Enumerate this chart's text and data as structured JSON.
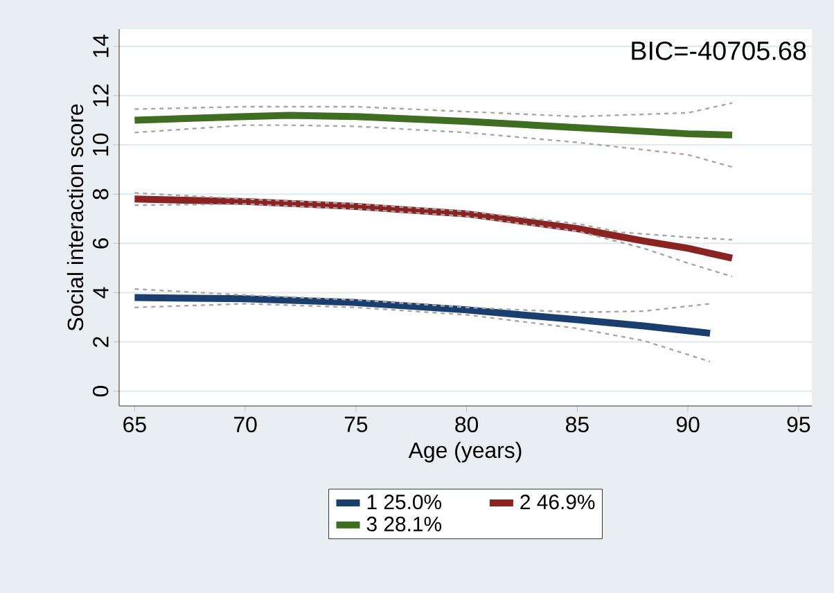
{
  "chart_data": {
    "type": "line",
    "xlabel": "Age (years)",
    "ylabel": "Social interaction score",
    "annotations": [
      "BIC=-40705.68"
    ],
    "xlim": [
      64.3,
      95.6
    ],
    "ylim": [
      -0.6,
      14.7
    ],
    "xticks": [
      65,
      70,
      75,
      80,
      85,
      90,
      95
    ],
    "yticks": [
      0,
      2,
      4,
      6,
      8,
      10,
      12,
      14
    ],
    "grid": "y",
    "legend": "bottom",
    "marker": "none",
    "line_style": "solid",
    "series": [
      {
        "name": "1 25.0%",
        "color": "#1a3f6e",
        "x": [
          65,
          70,
          75,
          80,
          85,
          88,
          91
        ],
        "values": [
          3.8,
          3.75,
          3.6,
          3.3,
          2.9,
          2.65,
          2.35
        ]
      },
      {
        "name": "2 46.9%",
        "color": "#8b2323",
        "x": [
          65,
          70,
          75,
          80,
          85,
          88,
          90,
          92
        ],
        "values": [
          7.8,
          7.7,
          7.5,
          7.2,
          6.6,
          6.1,
          5.8,
          5.4
        ]
      },
      {
        "name": "3 28.1%",
        "color": "#3f6e23",
        "x": [
          65,
          70,
          72,
          75,
          80,
          85,
          90,
          92
        ],
        "values": [
          11.0,
          11.15,
          11.2,
          11.15,
          10.95,
          10.7,
          10.45,
          10.4
        ]
      },
      {
        "color": "#a6a6a6",
        "line_style": "dashed",
        "x": [
          65,
          70,
          75,
          80,
          85,
          88,
          91
        ],
        "values": [
          3.4,
          3.55,
          3.4,
          3.1,
          2.55,
          2.05,
          1.2
        ]
      },
      {
        "color": "#a6a6a6",
        "line_style": "dashed",
        "x": [
          65,
          70,
          75,
          80,
          85,
          88,
          91
        ],
        "values": [
          4.15,
          3.9,
          3.7,
          3.4,
          3.2,
          3.25,
          3.55
        ]
      },
      {
        "color": "#a6a6a6",
        "line_style": "dashed",
        "x": [
          65,
          70,
          75,
          80,
          85,
          88,
          90,
          92
        ],
        "values": [
          7.55,
          7.6,
          7.4,
          7.1,
          6.5,
          5.8,
          5.2,
          4.65
        ]
      },
      {
        "color": "#a6a6a6",
        "line_style": "dashed",
        "x": [
          65,
          70,
          75,
          80,
          85,
          87,
          90,
          92
        ],
        "values": [
          8.05,
          7.8,
          7.6,
          7.3,
          6.8,
          6.45,
          6.25,
          6.15
        ]
      },
      {
        "color": "#a6a6a6",
        "line_style": "dashed",
        "x": [
          65,
          70,
          72,
          75,
          80,
          85,
          90,
          92
        ],
        "values": [
          10.5,
          10.8,
          10.8,
          10.75,
          10.5,
          10.1,
          9.6,
          9.1
        ]
      },
      {
        "color": "#a6a6a6",
        "line_style": "dashed",
        "x": [
          65,
          70,
          72,
          75,
          80,
          85,
          90,
          92
        ],
        "values": [
          11.45,
          11.55,
          11.55,
          11.55,
          11.35,
          11.15,
          11.3,
          11.7
        ]
      }
    ]
  }
}
